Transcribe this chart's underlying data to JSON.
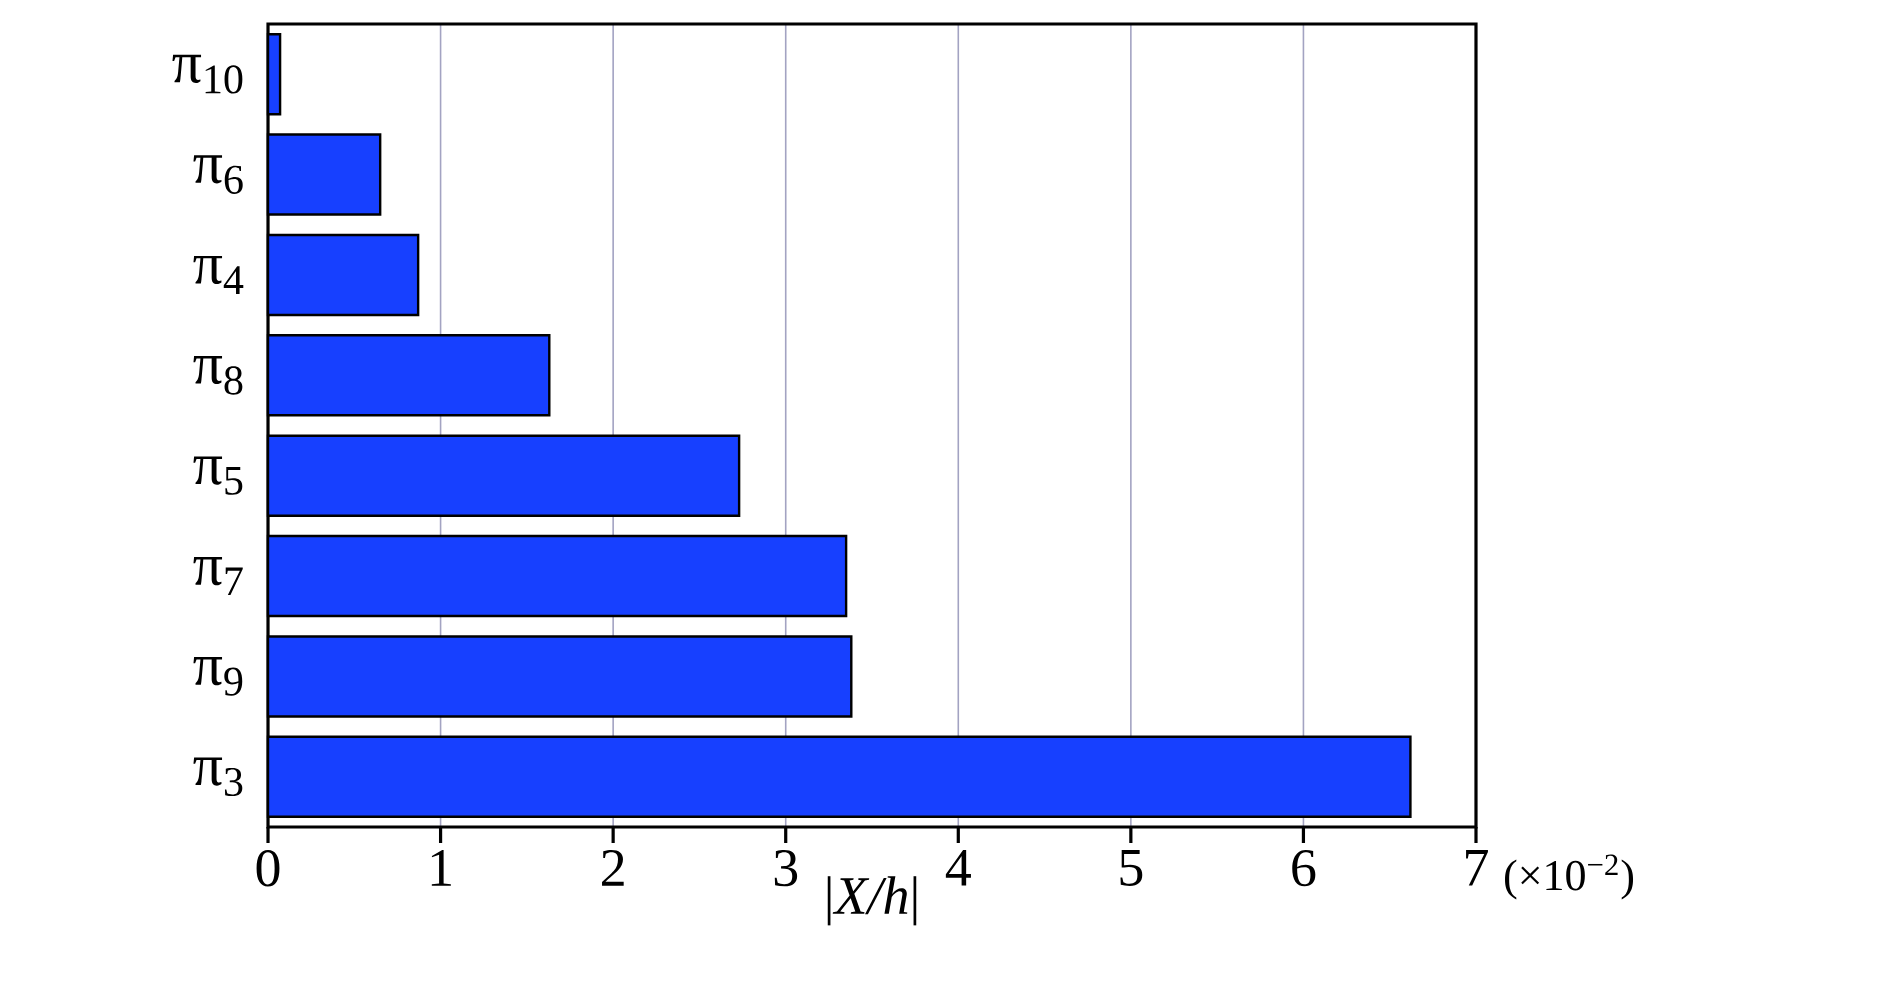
{
  "chart_data": {
    "type": "bar",
    "orientation": "horizontal",
    "categories": [
      "π$_{10}$",
      "π$_{6}$",
      "π$_{4}$",
      "π$_{8}$",
      "π$_{5}$",
      "π$_{7}$",
      "π$_{9}$",
      "π$_{3}$"
    ],
    "values": [
      0.07,
      0.65,
      0.87,
      1.63,
      2.73,
      3.35,
      3.38,
      6.62
    ],
    "color": "#1740ff",
    "xlim": [
      0,
      7
    ],
    "xticks": [
      0,
      1,
      2,
      3,
      4,
      5,
      6,
      7
    ],
    "xlabel": "|*X/h*|",
    "annotations": [
      "(×10$^{−2}$)"
    ],
    "grid": "x"
  }
}
